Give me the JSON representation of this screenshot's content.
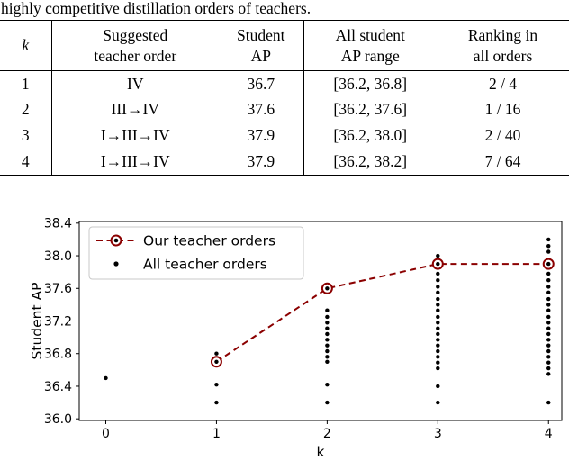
{
  "caption": "highly competitive distillation orders of teachers.",
  "table": {
    "k_header": "k",
    "headers": [
      {
        "l1": "Suggested",
        "l2": "teacher order"
      },
      {
        "l1": "Student",
        "l2": "AP"
      },
      {
        "l1": "All student",
        "l2": "AP range"
      },
      {
        "l1": "Ranking in",
        "l2": "all orders"
      }
    ],
    "rows": [
      [
        "1",
        "IV",
        "36.7",
        "[36.2, 36.8]",
        "2 / 4"
      ],
      [
        "2",
        "III→IV",
        "37.6",
        "[36.2, 37.6]",
        "1 / 16"
      ],
      [
        "3",
        "I→III→IV",
        "37.9",
        "[36.2, 38.0]",
        "2 / 40"
      ],
      [
        "4",
        "I→III→IV",
        "37.9",
        "[36.2, 38.2]",
        "7 / 64"
      ]
    ]
  },
  "chart_data": {
    "type": "scatter",
    "title": "",
    "xlabel": "k",
    "ylabel": "Student AP",
    "xlim": [
      -0.24,
      4.12
    ],
    "ylim": [
      35.98,
      38.42
    ],
    "xticks": [
      0,
      1,
      2,
      3,
      4
    ],
    "yticks": [
      36.0,
      36.4,
      36.8,
      37.2,
      37.6,
      38.0,
      38.4
    ],
    "grid": false,
    "legend_position": "upper left",
    "accent_color": "#8B0000",
    "dot_color": "#000000",
    "series": [
      {
        "name": "Our teacher orders",
        "type": "line",
        "style": "dashed",
        "color": "#8B0000",
        "x": [
          1,
          2,
          3,
          4
        ],
        "y": [
          36.7,
          37.6,
          37.9,
          37.9
        ]
      },
      {
        "name": "All teacher orders",
        "type": "scatter",
        "color": "#000000"
      }
    ],
    "all_orders_points": [
      {
        "k": 0,
        "ap": [
          36.5
        ]
      },
      {
        "k": 1,
        "ap": [
          36.2,
          36.42,
          36.7,
          36.8
        ]
      },
      {
        "k": 2,
        "ap": [
          36.2,
          36.42,
          36.7,
          36.76,
          36.83,
          36.9,
          36.97,
          37.04,
          37.11,
          37.18,
          37.25,
          37.33,
          37.6
        ]
      },
      {
        "k": 3,
        "ap": [
          36.2,
          36.4,
          36.62,
          36.69,
          36.76,
          36.83,
          36.9,
          36.97,
          37.04,
          37.11,
          37.18,
          37.25,
          37.33,
          37.4,
          37.47,
          37.55,
          37.62,
          37.7,
          37.78,
          37.9,
          38.0
        ]
      },
      {
        "k": 4,
        "ap": [
          36.2,
          36.55,
          36.62,
          36.69,
          36.76,
          36.83,
          36.9,
          36.97,
          37.04,
          37.11,
          37.18,
          37.25,
          37.33,
          37.4,
          37.47,
          37.55,
          37.62,
          37.7,
          37.78,
          37.9,
          38.05,
          38.12,
          38.2
        ]
      }
    ]
  }
}
